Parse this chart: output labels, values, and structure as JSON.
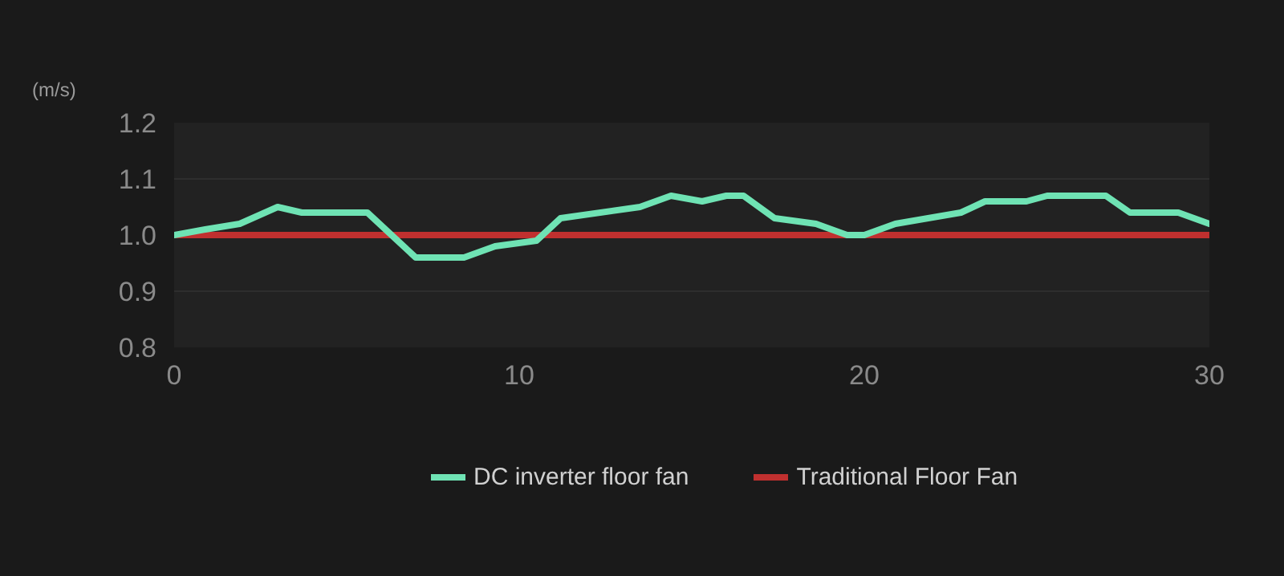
{
  "chart_data": {
    "type": "line",
    "ylabel": "(m/s)",
    "xlim": [
      0,
      30
    ],
    "ylim": [
      0.8,
      1.2
    ],
    "xticks": [
      0,
      10,
      20,
      30
    ],
    "yticks": [
      0.8,
      0.9,
      {
        "value": 1.0,
        "label": "1.0"
      },
      1.1,
      1.2
    ],
    "grid": "y",
    "legend": "bottom",
    "line_style": "solid",
    "series": [
      {
        "name": "DC inverter floor fan",
        "color": "#6fe3b4",
        "x": [
          0,
          0.9,
          1.9,
          3.0,
          3.7,
          5.6,
          6.3,
          7.0,
          8.4,
          9.3,
          10.5,
          11.2,
          13.5,
          14.4,
          15.3,
          16.0,
          16.5,
          17.4,
          18.6,
          19.5,
          20.0,
          20.9,
          22.8,
          23.5,
          24.7,
          25.3,
          27.0,
          27.7,
          29.1,
          30
        ],
        "values": [
          1.0,
          1.01,
          1.02,
          1.05,
          1.04,
          1.04,
          1.0,
          0.96,
          0.96,
          0.98,
          0.99,
          1.03,
          1.05,
          1.07,
          1.06,
          1.07,
          1.07,
          1.03,
          1.02,
          1.0,
          1.0,
          1.02,
          1.04,
          1.06,
          1.06,
          1.07,
          1.07,
          1.04,
          1.04,
          1.02
        ]
      },
      {
        "name": "Traditional Floor Fan",
        "color": "#c0302f",
        "x": [
          0,
          30
        ],
        "values": [
          1.0,
          1.0
        ]
      }
    ]
  }
}
